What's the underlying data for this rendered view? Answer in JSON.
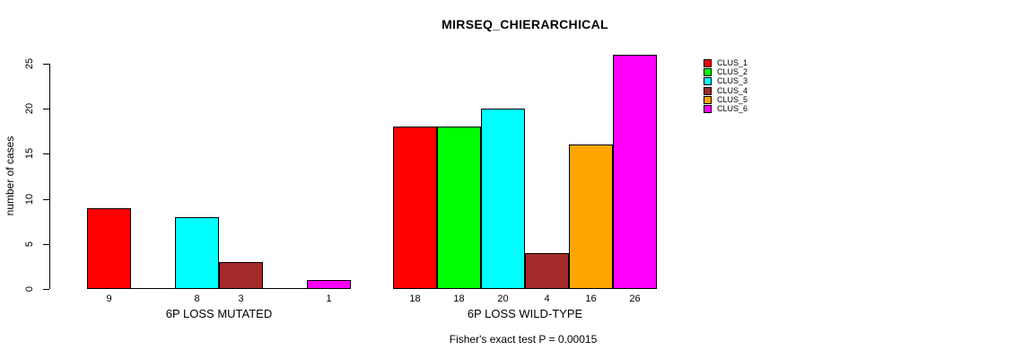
{
  "title": "MIRSEQ_CHIERARCHICAL",
  "footer": "Fisher's exact test P = 0.00015",
  "chart_data": {
    "type": "bar",
    "title": "MIRSEQ_CHIERARCHICAL",
    "xlabel": "",
    "ylabel": "number of cases",
    "ylim": [
      0,
      26
    ],
    "yticks": [
      0,
      5,
      10,
      15,
      20,
      25
    ],
    "grid": false,
    "legend_position": "right",
    "series": [
      {
        "name": "CLUS_1",
        "color": "#FF0000"
      },
      {
        "name": "CLUS_2",
        "color": "#00FF00"
      },
      {
        "name": "CLUS_3",
        "color": "#00FFFF"
      },
      {
        "name": "CLUS_4",
        "color": "#A52A2A"
      },
      {
        "name": "CLUS_5",
        "color": "#FFA500"
      },
      {
        "name": "CLUS_6",
        "color": "#FF00FF"
      }
    ],
    "groups": [
      {
        "label": "6P LOSS MUTATED",
        "values": [
          9,
          0,
          8,
          3,
          0,
          1
        ]
      },
      {
        "label": "6P LOSS WILD-TYPE",
        "values": [
          18,
          18,
          20,
          4,
          16,
          26
        ]
      }
    ],
    "annotation": "Fisher's exact test P = 0.00015"
  }
}
